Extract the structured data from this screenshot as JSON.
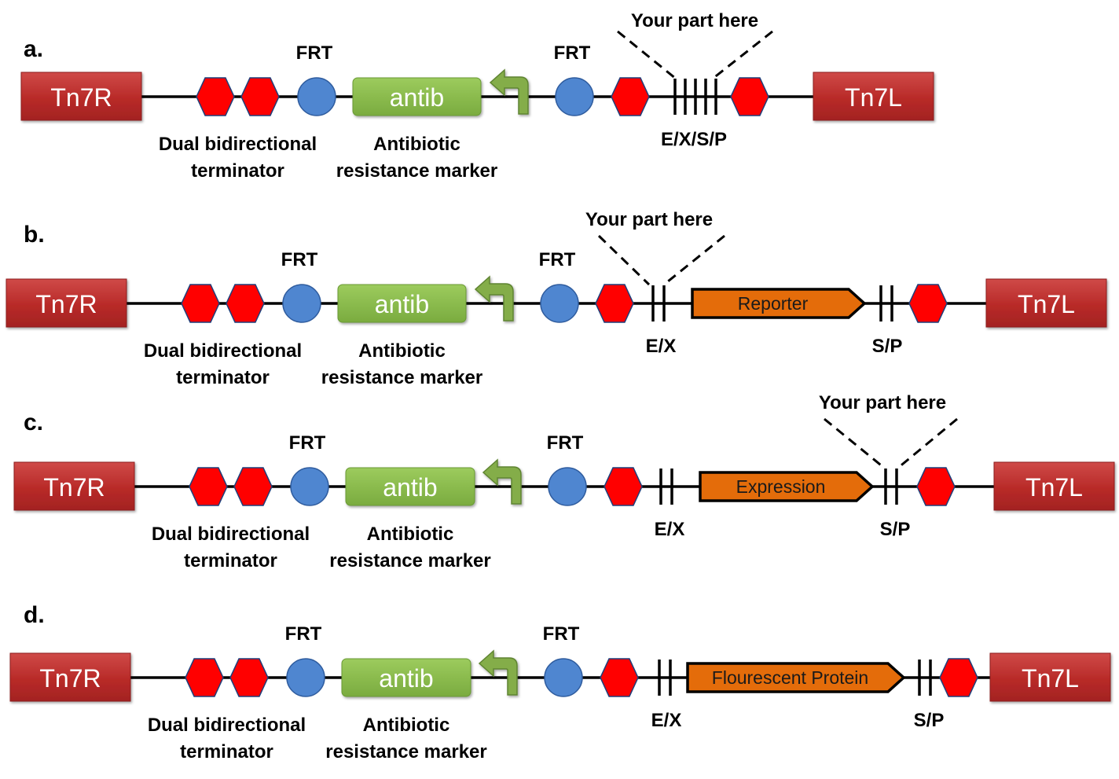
{
  "colors": {
    "tn7": "#c0302f",
    "terminator": "#ff0000",
    "frt": "#4f86d0",
    "antib": "#8bbb4d",
    "promoter": "#84ad48",
    "part": "#e46c0a",
    "line": "#000000"
  },
  "panels": [
    {
      "id": "a",
      "letter": "a.",
      "left_box": "Tn7R",
      "right_box": "Tn7L",
      "frt_left": "FRT",
      "frt_right": "FRT",
      "antib": "antib",
      "terminator_label": [
        "Dual bidirectional",
        "terminator"
      ],
      "antib_label": [
        "Antibiotic",
        "resistance marker"
      ],
      "insert_label": "Your part here",
      "site_labels": [
        "E/X/S/P"
      ],
      "part_label": ""
    },
    {
      "id": "b",
      "letter": "b.",
      "left_box": "Tn7R",
      "right_box": "Tn7L",
      "frt_left": "FRT",
      "frt_right": "FRT",
      "antib": "antib",
      "terminator_label": [
        "Dual bidirectional",
        "terminator"
      ],
      "antib_label": [
        "Antibiotic",
        "resistance marker"
      ],
      "insert_label": "Your part here",
      "site_labels": [
        "E/X",
        "S/P"
      ],
      "part_label": "Reporter"
    },
    {
      "id": "c",
      "letter": "c.",
      "left_box": "Tn7R",
      "right_box": "Tn7L",
      "frt_left": "FRT",
      "frt_right": "FRT",
      "antib": "antib",
      "terminator_label": [
        "Dual bidirectional",
        "terminator"
      ],
      "antib_label": [
        "Antibiotic",
        "resistance marker"
      ],
      "insert_label": "Your part here",
      "site_labels": [
        "E/X",
        "S/P"
      ],
      "part_label": "Expression"
    },
    {
      "id": "d",
      "letter": "d.",
      "left_box": "Tn7R",
      "right_box": "Tn7L",
      "frt_left": "FRT",
      "frt_right": "FRT",
      "antib": "antib",
      "terminator_label": [
        "Dual bidirectional",
        "terminator"
      ],
      "antib_label": [
        "Antibiotic",
        "resistance marker"
      ],
      "insert_label": "",
      "site_labels": [
        "E/X",
        "S/P"
      ],
      "part_label": "Flourescent Protein"
    }
  ]
}
